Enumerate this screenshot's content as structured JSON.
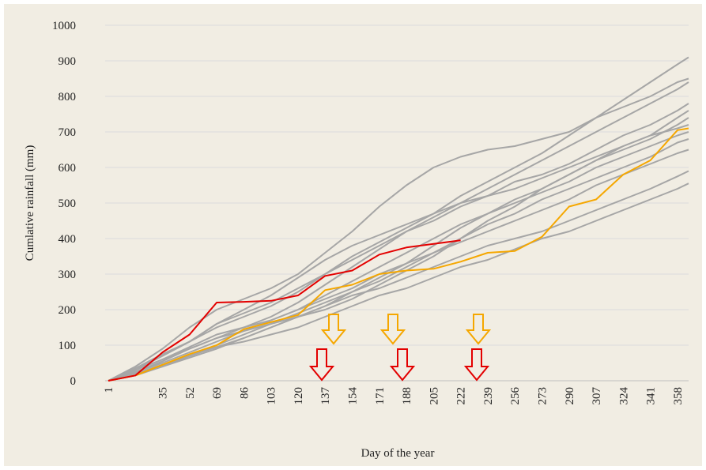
{
  "chart_data": {
    "type": "line",
    "y_label": "Cumlative rainfall (mm)",
    "x_label": "Day of the year",
    "x": [
      1,
      18,
      35,
      52,
      69,
      86,
      103,
      120,
      137,
      154,
      171,
      188,
      205,
      222,
      239,
      256,
      273,
      290,
      307,
      324,
      341,
      358,
      365
    ],
    "xlim": [
      1,
      365
    ],
    "xticks": [
      1,
      35,
      52,
      69,
      86,
      103,
      120,
      137,
      154,
      171,
      188,
      205,
      222,
      239,
      256,
      273,
      290,
      307,
      324,
      341,
      358
    ],
    "ylim": [
      0,
      1000
    ],
    "yticks": [
      0,
      100,
      200,
      300,
      400,
      500,
      600,
      700,
      800,
      900,
      1000
    ],
    "grid": true,
    "series": [
      {
        "color": "#a6a6a6",
        "values": [
          0,
          40,
          90,
          150,
          200,
          230,
          260,
          300,
          360,
          420,
          490,
          550,
          600,
          630,
          650,
          660,
          680,
          700,
          740,
          770,
          800,
          840,
          850
        ]
      },
      {
        "color": "#a6a6a6",
        "values": [
          0,
          30,
          70,
          110,
          150,
          180,
          210,
          250,
          300,
          350,
          390,
          430,
          470,
          520,
          560,
          600,
          640,
          690,
          740,
          790,
          840,
          890,
          910
        ]
      },
      {
        "color": "#a6a6a6",
        "values": [
          0,
          35,
          75,
          110,
          160,
          190,
          220,
          260,
          300,
          340,
          380,
          420,
          460,
          500,
          540,
          580,
          620,
          660,
          700,
          740,
          780,
          820,
          840
        ]
      },
      {
        "color": "#a6a6a6",
        "values": [
          0,
          25,
          55,
          90,
          120,
          150,
          180,
          220,
          270,
          320,
          370,
          420,
          450,
          490,
          520,
          560,
          580,
          610,
          650,
          690,
          720,
          760,
          780
        ]
      },
      {
        "color": "#a6a6a6",
        "values": [
          0,
          30,
          60,
          95,
          130,
          150,
          170,
          200,
          230,
          260,
          300,
          330,
          380,
          430,
          470,
          510,
          540,
          580,
          620,
          660,
          690,
          740,
          760
        ]
      },
      {
        "color": "#a6a6a6",
        "values": [
          0,
          20,
          45,
          70,
          100,
          130,
          160,
          190,
          220,
          250,
          280,
          320,
          360,
          400,
          450,
          490,
          540,
          580,
          620,
          650,
          680,
          720,
          740
        ]
      },
      {
        "color": "#a6a6a6",
        "values": [
          0,
          25,
          50,
          80,
          110,
          140,
          170,
          200,
          240,
          280,
          320,
          360,
          400,
          440,
          470,
          500,
          530,
          560,
          600,
          630,
          660,
          690,
          700
        ]
      },
      {
        "color": "#a6a6a6",
        "values": [
          0,
          20,
          40,
          70,
          95,
          120,
          150,
          180,
          200,
          230,
          270,
          310,
          350,
          400,
          440,
          470,
          510,
          540,
          570,
          600,
          630,
          670,
          680
        ]
      },
      {
        "color": "#a6a6a6",
        "values": [
          0,
          30,
          60,
          90,
          120,
          140,
          160,
          180,
          210,
          250,
          290,
          330,
          360,
          390,
          420,
          450,
          480,
          510,
          550,
          580,
          610,
          640,
          650
        ]
      },
      {
        "color": "#a6a6a6",
        "values": [
          0,
          15,
          40,
          65,
          90,
          120,
          150,
          180,
          210,
          240,
          260,
          290,
          320,
          350,
          380,
          400,
          420,
          450,
          480,
          510,
          540,
          575,
          590
        ]
      },
      {
        "color": "#a6a6a6",
        "values": [
          0,
          20,
          45,
          70,
          95,
          110,
          130,
          150,
          180,
          210,
          240,
          260,
          290,
          320,
          340,
          370,
          400,
          420,
          450,
          480,
          510,
          540,
          555
        ]
      },
      {
        "color": "#a6a6a6",
        "values": [
          0,
          35,
          70,
          110,
          160,
          200,
          240,
          290,
          340,
          380,
          410,
          440,
          470,
          500,
          520,
          540,
          570,
          600,
          630,
          660,
          690,
          710,
          720
        ]
      },
      {
        "color": "#f5a700",
        "values": [
          0,
          15,
          45,
          75,
          100,
          145,
          165,
          185,
          255,
          270,
          300,
          310,
          315,
          335,
          360,
          365,
          405,
          490,
          510,
          580,
          620,
          705,
          710
        ]
      },
      {
        "color": "#e30000",
        "values": [
          0,
          15,
          80,
          130,
          220,
          222,
          225,
          240,
          295,
          310,
          355,
          375,
          385,
          395,
          null,
          null,
          null,
          null,
          null,
          null,
          null,
          null,
          null
        ]
      }
    ]
  }
}
